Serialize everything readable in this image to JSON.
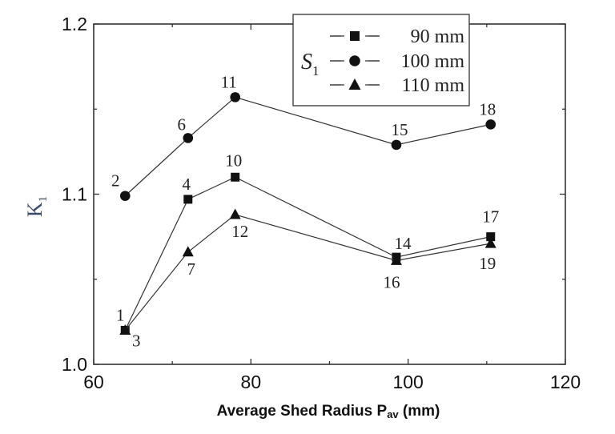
{
  "chart_data": {
    "type": "line",
    "title": "",
    "xlabel": "Average Shed Radius P",
    "xlabel_sub": "av",
    "xlabel_unit": " (mm)",
    "ylabel": "K",
    "ylabel_sub": "1",
    "xlim": [
      60,
      120
    ],
    "ylim": [
      1.0,
      1.2
    ],
    "xticks": [
      "60",
      "80",
      "100",
      "120"
    ],
    "yticks": [
      "1.0",
      "1.1",
      "1.2"
    ],
    "grid": false,
    "legend_placement": "top-center",
    "legend_title": "S",
    "legend_title_sub": "1",
    "colors": {
      "line": "#333333",
      "marker": "#111111"
    },
    "series": [
      {
        "name": "90 mm",
        "marker": "square",
        "x": [
          64,
          72,
          78,
          98.5,
          110.5
        ],
        "y": [
          1.02,
          1.097,
          1.11,
          1.063,
          1.075
        ],
        "labels": [
          "1",
          "4",
          "10",
          "14",
          "17"
        ]
      },
      {
        "name": "100 mm",
        "marker": "circle",
        "x": [
          64,
          72,
          78,
          98.5,
          110.5
        ],
        "y": [
          1.099,
          1.133,
          1.157,
          1.129,
          1.141
        ],
        "labels": [
          "2",
          "6",
          "11",
          "15",
          "18"
        ]
      },
      {
        "name": "110 mm",
        "marker": "triangle",
        "x": [
          64,
          72,
          78,
          98.5,
          110.5
        ],
        "y": [
          1.02,
          1.066,
          1.088,
          1.061,
          1.071
        ],
        "labels": [
          "3",
          "7",
          "12",
          "16",
          "19"
        ]
      }
    ]
  }
}
